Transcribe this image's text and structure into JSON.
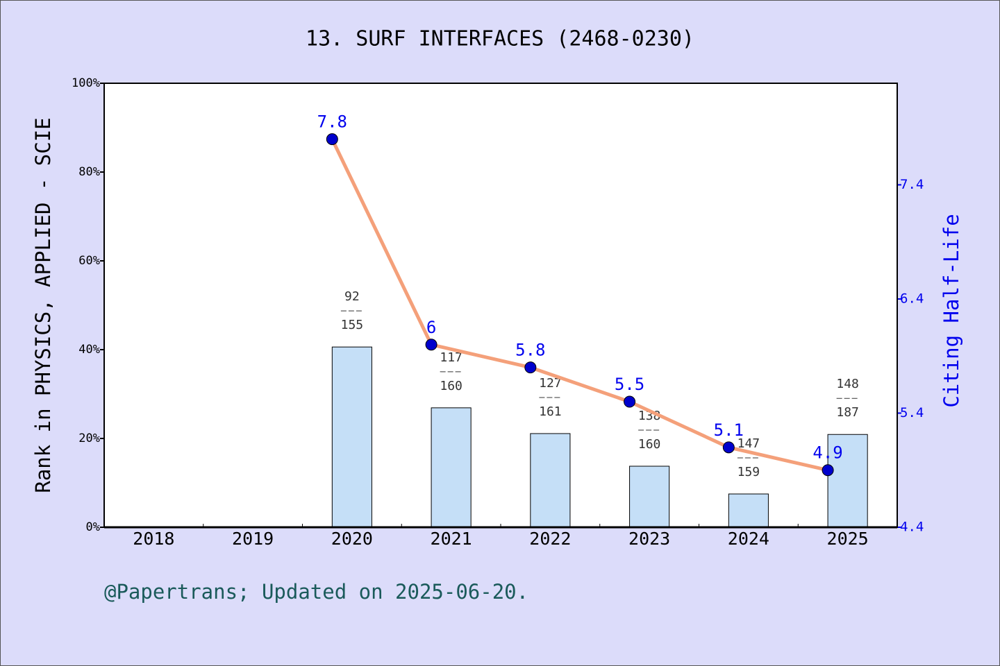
{
  "chart_data": {
    "type": "bar-line",
    "title": "13. SURF INTERFACES (2468-0230)",
    "y_label": "Rank in PHYSICS, APPLIED - SCIE",
    "y2_label": "Citing Half-Life",
    "footer": "@Papertrans; Updated on 2025-06-20.",
    "categories": [
      "2018",
      "2019",
      "2020",
      "2021",
      "2022",
      "2023",
      "2024",
      "2025"
    ],
    "series": [
      {
        "type": "bar",
        "color": "#c5dff7",
        "values": [
          null,
          null,
          40.6,
          26.9,
          21.1,
          13.75,
          7.5,
          20.9
        ],
        "ranks": [
          null,
          null,
          92,
          117,
          127,
          138,
          147,
          148
        ],
        "totals": [
          null,
          null,
          155,
          160,
          161,
          160,
          159,
          187
        ]
      },
      {
        "type": "line",
        "axis": "y2",
        "color": "#f4a07a",
        "marker_color": "#0000cc",
        "values": [
          null,
          null,
          7.8,
          6,
          5.8,
          5.5,
          5.1,
          4.9
        ]
      }
    ],
    "ylim": [
      0,
      100
    ],
    "yticks": [
      {
        "value": 0,
        "label": "0%"
      },
      {
        "value": 20,
        "label": "20%"
      },
      {
        "value": 40,
        "label": "40%"
      },
      {
        "value": 60,
        "label": "60%"
      },
      {
        "value": 80,
        "label": "80%"
      },
      {
        "value": 100,
        "label": "100%"
      }
    ],
    "y2lim": [
      4.4,
      8.29
    ],
    "y2ticks": [
      4.4,
      5.4,
      6.4,
      7.4
    ]
  }
}
